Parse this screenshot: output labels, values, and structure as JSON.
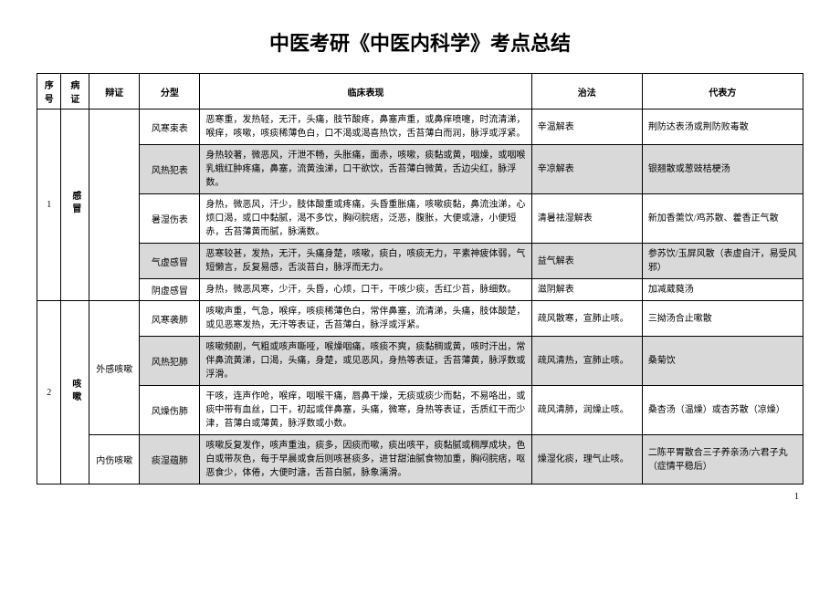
{
  "title": "中医考研《中医内科学》考点总结",
  "headers": {
    "seq": "序号",
    "disease": "病证",
    "category": "辩证",
    "type": "分型",
    "desc": "临床表现",
    "treat": "治法",
    "formula": "代表方"
  },
  "page_number": "1",
  "groups": [
    {
      "seq": "1",
      "disease": "感冒",
      "rows": [
        {
          "category": "",
          "type": "风寒束表",
          "desc": "恶寒重，发热轻，无汗，头痛，肢节酸疼，鼻塞声重，或鼻痒喷嚏，时流清涕，喉痒，咳嗽，咳痰稀薄色白，口不渴或渴喜热饮，舌苔薄白而润，脉浮或浮紧。",
          "treat": "辛温解表",
          "formula": "荆防达表汤或荆防败毒散",
          "shaded": false
        },
        {
          "category": "",
          "type": "风热犯表",
          "desc": "身热较著，微恶风，汗泄不畅，头胀痛，面赤，咳嗽，痰黏或黄，咽燥，或咽喉乳蛾红肿疼痛，鼻塞，流黄浊涕，口干欲饮，舌苔薄白微黄，舌边尖红，脉浮数。",
          "treat": "辛凉解表",
          "formula": "银翘散或葱豉桔梗汤",
          "shaded": true
        },
        {
          "category": "",
          "type": "暑湿伤表",
          "desc": "身热，微恶风，汗少，肢体酸重或疼痛，头昏重胀痛，咳嗽痰黏，鼻流浊涕，心烦口渴，或口中黏腻，渴不多饮，胸闷脘痞，泛恶，腹胀，大便或溏，小便短赤，舌苔薄黄而腻，脉濡数。",
          "treat": "清暑祛湿解表",
          "formula": "新加香薷饮/鸡苏散、藿香正气散",
          "shaded": false
        },
        {
          "category": "",
          "type": "气虚感冒",
          "desc": "恶寒较甚，发热，无汗，头痛身楚，咳嗽，痰白，咳痰无力，平素神疲体弱，气短懒言，反复易感，舌淡苔白，脉浮而无力。",
          "treat": "益气解表",
          "formula": "参苏饮/玉屏风散（表虚自汗，易受风邪）",
          "shaded": true
        },
        {
          "category": "",
          "type": "阴虚感冒",
          "desc": "身热，微恶风寒，少汗，头昏，心烦，口干，干咳少痰，舌红少苔，脉细数。",
          "treat": "滋阴解表",
          "formula": "加减葳蕤汤",
          "shaded": false
        }
      ]
    },
    {
      "seq": "2",
      "disease": "咳嗽",
      "rows": [
        {
          "category": "外感咳嗽",
          "category_span": 3,
          "type": "风寒袭肺",
          "desc": "咳嗽声重，气急，喉痒，咳痰稀薄色白，常伴鼻塞，流清涕，头痛，肢体酸楚，或见恶寒发热，无汗等表证，舌苔薄白，脉浮或浮紧。",
          "treat": "疏风散寒，宣肺止咳。",
          "formula": "三拗汤合止嗽散",
          "shaded": false
        },
        {
          "category": "",
          "type": "风热犯肺",
          "desc": "咳嗽频剧，气粗或咳声嘶哑，喉燥咽痛，咳痰不爽，痰黏稠或黄，咳时汗出，常伴鼻流黄涕，口渴，头痛，身楚，或见恶风，身热等表证，舌苔薄黄，脉浮数或浮滑。",
          "treat": "疏风清热，宣肺止咳。",
          "formula": "桑菊饮",
          "shaded": true
        },
        {
          "category": "",
          "type": "风燥伤肺",
          "desc": "干咳，连声作呛，喉痒，咽喉干痛，唇鼻干燥，无痰或痰少而黏，不易咯出，或痰中带有血丝，口干，初起或伴鼻塞，头痛，微寒，身热等表证，舌质红干而少津，苔薄白或薄黄，脉浮数或小数。",
          "treat": "疏风清肺，润燥止咳。",
          "formula": "桑杏汤（温燥）或杏苏散（凉燥）",
          "shaded": false
        },
        {
          "category": "内伤咳嗽",
          "category_span": 1,
          "type": "痰湿蕴肺",
          "desc": "咳嗽反复发作，咳声重浊，痰多，因痰而嗽，痰出咳平，痰黏腻或稠厚成块，色白或带灰色，每于早晨或食后则咳甚痰多，进甘甜油腻食物加重，胸闷脘痞，呕恶食少，体倦，大便时溏，舌苔白腻，脉象濡滑。",
          "treat": "燥湿化痰，理气止咳。",
          "formula": "二陈平胃散合三子养亲汤/六君子丸（症情平稳后）",
          "shaded": true
        }
      ]
    }
  ]
}
